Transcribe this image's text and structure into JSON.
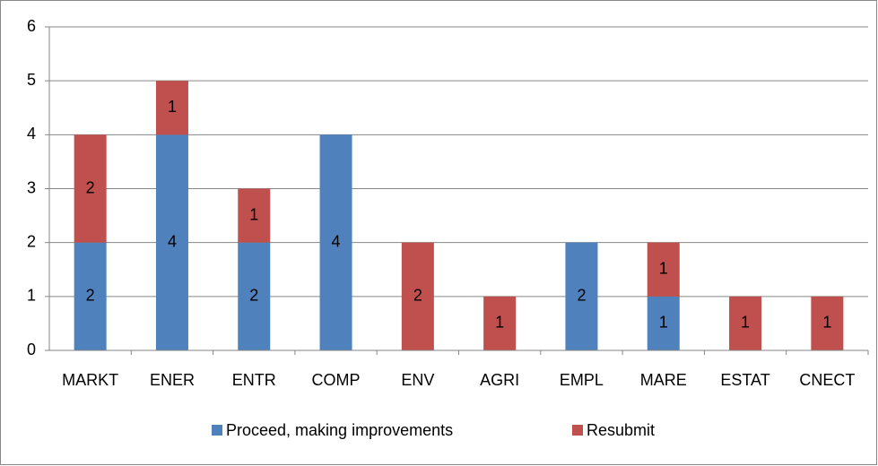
{
  "chart_data": {
    "type": "stacked_bar",
    "categories": [
      "MARKT",
      "ENER",
      "ENTR",
      "COMP",
      "ENV",
      "AGRI",
      "EMPL",
      "MARE",
      "ESTAT",
      "CNECT"
    ],
    "series": [
      {
        "name": "Proceed, making improvements",
        "color": "#4f81bd",
        "values": [
          2,
          4,
          2,
          4,
          0,
          0,
          2,
          1,
          0,
          0
        ]
      },
      {
        "name": "Resubmit",
        "color": "#c0504d",
        "values": [
          2,
          1,
          1,
          0,
          2,
          1,
          0,
          1,
          1,
          1
        ]
      }
    ],
    "ylim": [
      0,
      6
    ],
    "yticks": [
      0,
      1,
      2,
      3,
      4,
      5,
      6
    ],
    "grid": true,
    "legend": "bottom"
  }
}
